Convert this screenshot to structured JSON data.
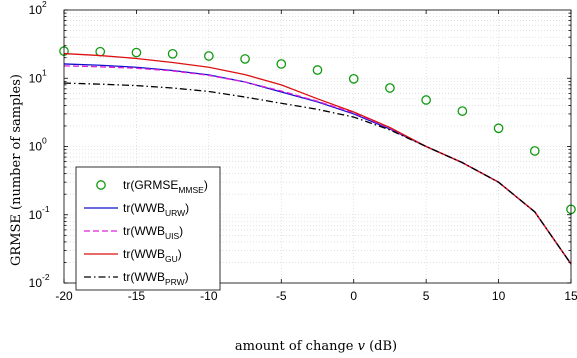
{
  "chart_data": {
    "type": "line",
    "xlabel_text": "amount of change ",
    "xlabel_var": "v",
    "xlabel_unit": " (dB)",
    "ylabel": "GRMSE (number of samples)",
    "x_scale": "linear",
    "y_scale": "log",
    "xlim": [
      -20,
      15
    ],
    "ylim": [
      0.01,
      100
    ],
    "x_ticks": [
      -20,
      -15,
      -10,
      -5,
      0,
      5,
      10,
      15
    ],
    "y_ticks": [
      {
        "base": "10",
        "exp": "-2",
        "value": 0.01
      },
      {
        "base": "10",
        "exp": "-1",
        "value": 0.1
      },
      {
        "base": "10",
        "exp": "0",
        "value": 1
      },
      {
        "base": "10",
        "exp": "1",
        "value": 10
      },
      {
        "base": "10",
        "exp": "2",
        "value": 100
      }
    ],
    "grid": true,
    "legend_position": "bottom-left",
    "series": [
      {
        "name": "tr(GRMSE",
        "name_sub": "MMSE",
        "name_end": ")",
        "style": "markers",
        "color": "#119911",
        "x": [
          -20,
          -17.5,
          -15,
          -12.5,
          -10,
          -7.5,
          -5,
          -2.5,
          0,
          2.5,
          5,
          7.5,
          10,
          12.5,
          15
        ],
        "y": [
          25,
          24.5,
          23.8,
          22.8,
          21.2,
          19.2,
          16.2,
          13.2,
          9.8,
          7.2,
          4.8,
          3.3,
          1.85,
          0.86,
          0.12
        ]
      },
      {
        "name": "tr(WWB",
        "name_sub": "URW",
        "name_end": ")",
        "style": "solid",
        "color": "#1010cc",
        "x": [
          -20,
          -17.5,
          -15,
          -12.5,
          -10,
          -7.5,
          -5,
          -2.5,
          0,
          2.5,
          5,
          7.5,
          10,
          12.5,
          15
        ],
        "y": [
          16.2,
          15.5,
          14.5,
          13.0,
          11.2,
          8.8,
          6.3,
          4.5,
          3.0,
          1.8,
          1.0,
          0.58,
          0.3,
          0.11,
          0.019
        ]
      },
      {
        "name": "tr(WWB",
        "name_sub": "UIS",
        "name_end": ")",
        "style": "dashed",
        "color": "#dd22dd",
        "x": [
          -20,
          -17.5,
          -15,
          -12.5,
          -10,
          -7.5,
          -5,
          -2.5,
          0,
          2.5,
          5,
          7.5,
          10,
          12.5,
          15
        ],
        "y": [
          15.2,
          14.7,
          14.0,
          12.8,
          11.0,
          8.8,
          6.5,
          4.6,
          3.1,
          1.85,
          1.0,
          0.58,
          0.3,
          0.11,
          0.019
        ]
      },
      {
        "name": "tr(WWB",
        "name_sub": "GU",
        "name_end": ")",
        "style": "solid",
        "color": "#dd1111",
        "x": [
          -20,
          -17.5,
          -15,
          -12.5,
          -10,
          -7.5,
          -5,
          -2.5,
          0,
          2.5,
          5,
          7.5,
          10,
          12.5,
          15
        ],
        "y": [
          23.0,
          21.5,
          19.5,
          17.0,
          14.5,
          11.3,
          8.0,
          5.0,
          3.2,
          1.9,
          1.0,
          0.58,
          0.3,
          0.11,
          0.019
        ]
      },
      {
        "name": "tr(WWB",
        "name_sub": "PRW",
        "name_end": ")",
        "style": "dashdot",
        "color": "#000000",
        "x": [
          -20,
          -17.5,
          -15,
          -12.5,
          -10,
          -7.5,
          -5,
          -2.5,
          0,
          2.5,
          5,
          7.5,
          10,
          12.5,
          15
        ],
        "y": [
          8.5,
          8.2,
          7.8,
          7.2,
          6.4,
          5.3,
          4.3,
          3.5,
          2.7,
          1.75,
          1.0,
          0.58,
          0.3,
          0.11,
          0.019
        ]
      }
    ]
  }
}
